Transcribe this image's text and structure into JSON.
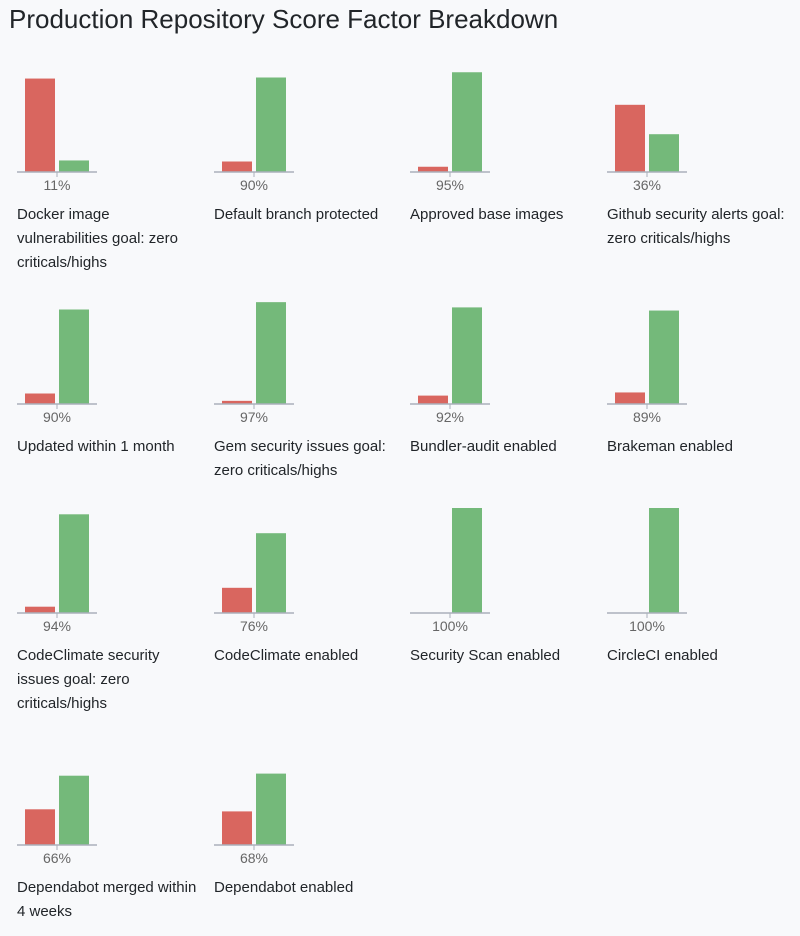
{
  "title": "Production Repository Score Factor Breakdown",
  "colors": {
    "fail": "#d9665f",
    "pass": "#74b97a",
    "axis": "#aab0bb"
  },
  "chart_data": {
    "type": "bar",
    "title": "Production Repository Score Factor Breakdown",
    "series_colors": [
      "fail: red",
      "pass: green"
    ],
    "charts": [
      {
        "label": "Docker image vulnerabilities goal: zero criticals/highs",
        "percent": "11%",
        "fail": 89,
        "pass": 11
      },
      {
        "label": "Default branch protected",
        "percent": "90%",
        "fail": 10,
        "pass": 90
      },
      {
        "label": "Approved base images",
        "percent": "95%",
        "fail": 5,
        "pass": 95
      },
      {
        "label": "Github security alerts goal: zero criticals/highs",
        "percent": "36%",
        "fail": 64,
        "pass": 36
      },
      {
        "label": "Updated within 1 month",
        "percent": "90%",
        "fail": 10,
        "pass": 90
      },
      {
        "label": "Gem security issues goal: zero criticals/highs",
        "percent": "97%",
        "fail": 3,
        "pass": 97
      },
      {
        "label": "Bundler-audit enabled",
        "percent": "92%",
        "fail": 8,
        "pass": 92
      },
      {
        "label": "Brakeman enabled",
        "percent": "89%",
        "fail": 11,
        "pass": 89
      },
      {
        "label": "CodeClimate security issues goal: zero criticals/highs",
        "percent": "94%",
        "fail": 6,
        "pass": 94
      },
      {
        "label": "CodeClimate enabled",
        "percent": "76%",
        "fail": 24,
        "pass": 76
      },
      {
        "label": "Security Scan enabled",
        "percent": "100%",
        "fail": 0,
        "pass": 100
      },
      {
        "label": "CircleCI enabled",
        "percent": "100%",
        "fail": 0,
        "pass": 100
      },
      {
        "label": "Dependabot merged within 4 weeks",
        "percent": "66%",
        "fail": 34,
        "pass": 66
      },
      {
        "label": "Dependabot enabled",
        "percent": "68%",
        "fail": 32,
        "pass": 68
      }
    ]
  }
}
